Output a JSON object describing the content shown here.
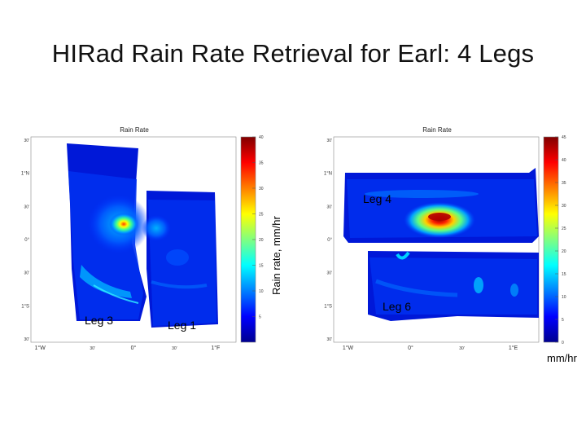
{
  "slide": {
    "title": "HIRad Rain Rate Retrieval for Earl: 4 Legs",
    "colorbar_label": "Rain rate, mm/hr",
    "unit_label": "mm/hr"
  },
  "colors": {
    "colormap": [
      "#00008f",
      "#0000ff",
      "#0080ff",
      "#00ffff",
      "#80ff80",
      "#ffff00",
      "#ff8000",
      "#ff0000",
      "#800000"
    ],
    "background": "#00008f"
  },
  "chart_data": [
    {
      "type": "heatmap",
      "title": "Rain Rate",
      "legs": [
        "Leg 3",
        "Leg 1"
      ],
      "x_tick_labels": [
        "1°W",
        "30'",
        "0°",
        "30'",
        "1°F"
      ],
      "y_tick_labels": [
        "30'",
        "1°N",
        "30'",
        "0°",
        "30'",
        "1°S",
        "30'"
      ],
      "colorbar": {
        "min": 0,
        "max": 40,
        "ticks": [
          5,
          10,
          15,
          20,
          25,
          30,
          35,
          40
        ]
      },
      "peak_rain_rate": 30
    },
    {
      "type": "heatmap",
      "title": "Rain Rate",
      "legs": [
        "Leg 4",
        "Leg 6"
      ],
      "x_tick_labels": [
        "1°W",
        "0°",
        "30'",
        "1°E"
      ],
      "y_tick_labels": [
        "30'",
        "1°N",
        "30'",
        "0°",
        "30'",
        "1°S",
        "30'"
      ],
      "colorbar": {
        "min": 0,
        "max": 45,
        "ticks": [
          0,
          5,
          10,
          15,
          20,
          25,
          30,
          35,
          40,
          45
        ]
      },
      "peak_rain_rate": 40
    }
  ]
}
